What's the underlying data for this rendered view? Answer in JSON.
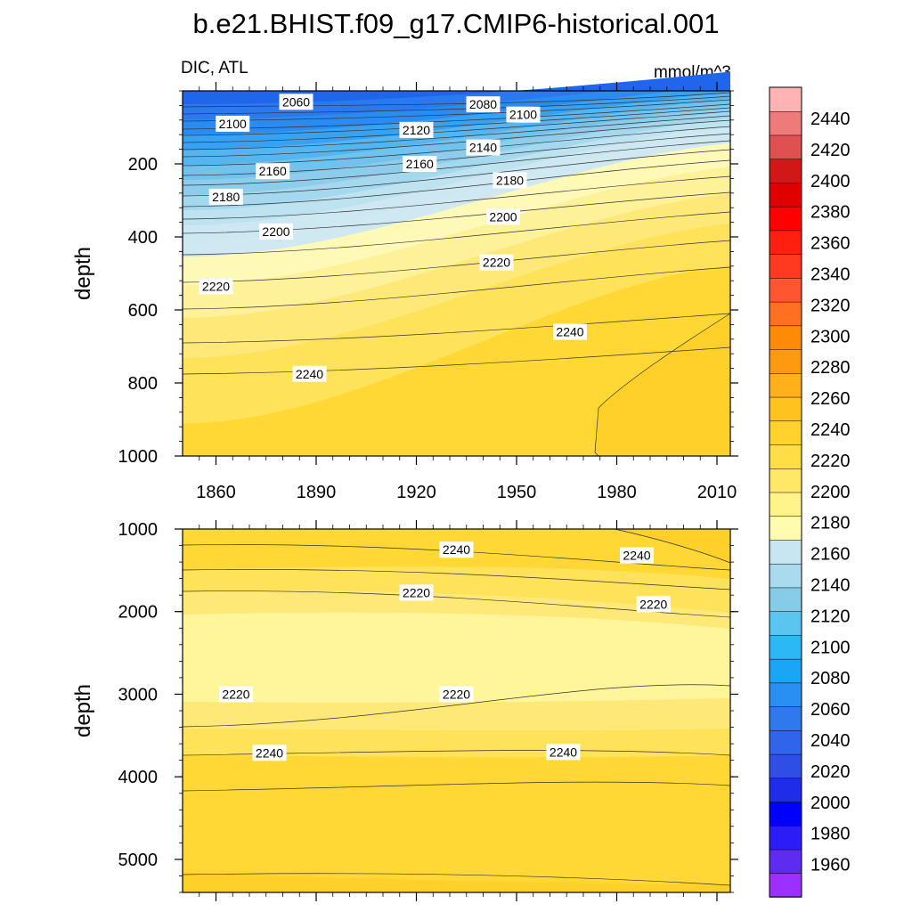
{
  "chart_data": {
    "type": "contour",
    "title": "b.e21.BHIST.f09_g17.CMIP6-historical.001",
    "subtitle_left": "DIC, ATL",
    "subtitle_right": "mmol/m^3",
    "xlabel": "",
    "ylabel": "depth",
    "x_ticks": [
      1860,
      1890,
      1920,
      1950,
      1980,
      2010
    ],
    "x_range": [
      1850,
      2014
    ],
    "colorbar": {
      "levels": [
        1960,
        1980,
        2000,
        2020,
        2040,
        2060,
        2080,
        2100,
        2120,
        2140,
        2160,
        2180,
        2200,
        2220,
        2240,
        2260,
        2280,
        2300,
        2320,
        2340,
        2360,
        2380,
        2400,
        2420,
        2440
      ],
      "labels": [
        "2440",
        "2420",
        "2400",
        "2380",
        "2360",
        "2340",
        "2320",
        "2300",
        "2280",
        "2260",
        "2240",
        "2220",
        "2200",
        "2180",
        "2160",
        "2140",
        "2120",
        "2100",
        "2080",
        "2060",
        "2040",
        "2020",
        "2000",
        "1980",
        "1960"
      ],
      "colors": [
        "#9b30ff",
        "#5d2cf0",
        "#2c1cf5",
        "#0000ff",
        "#1f2ce8",
        "#2e4ee6",
        "#3064ea",
        "#2f79ee",
        "#2a8ff3",
        "#1aa5f7",
        "#2bb8f4",
        "#5ac6f0",
        "#86cbe8",
        "#a9daee",
        "#c8e6f2",
        "#fffbb0",
        "#fff38a",
        "#ffe866",
        "#ffdd44",
        "#ffd22e",
        "#ffc320",
        "#ffb01a",
        "#ff9a10",
        "#ff8a08",
        "#ff7020",
        "#ff5530",
        "#ff3a20",
        "#ff2010",
        "#ff0000",
        "#e00000",
        "#d01818",
        "#e05050",
        "#ef7a7a",
        "#ffb3b3"
      ]
    },
    "panels": [
      {
        "name": "upper-0-1000m",
        "y_range": [
          0,
          1000
        ],
        "y_ticks": [
          200,
          400,
          600,
          800,
          1000
        ],
        "y_tick_labels": [
          "200",
          "400",
          "600",
          "800",
          "1000"
        ],
        "contour_labels": [
          {
            "value": "2060",
            "year": 1884,
            "depth": 30
          },
          {
            "value": "2080",
            "year": 1940,
            "depth": 37
          },
          {
            "value": "2100",
            "year": 1865,
            "depth": 90
          },
          {
            "value": "2100",
            "year": 1952,
            "depth": 65
          },
          {
            "value": "2120",
            "year": 1920,
            "depth": 107
          },
          {
            "value": "2140",
            "year": 1940,
            "depth": 155
          },
          {
            "value": "2160",
            "year": 1877,
            "depth": 220
          },
          {
            "value": "2160",
            "year": 1921,
            "depth": 200
          },
          {
            "value": "2180",
            "year": 1863,
            "depth": 290
          },
          {
            "value": "2180",
            "year": 1948,
            "depth": 245
          },
          {
            "value": "2200",
            "year": 1878,
            "depth": 385
          },
          {
            "value": "2200",
            "year": 1946,
            "depth": 345
          },
          {
            "value": "2220",
            "year": 1860,
            "depth": 535
          },
          {
            "value": "2220",
            "year": 1944,
            "depth": 470
          },
          {
            "value": "2240",
            "year": 1888,
            "depth": 775
          },
          {
            "value": "2240",
            "year": 1966,
            "depth": 660
          }
        ]
      },
      {
        "name": "lower-1000-5400m",
        "y_range": [
          1000,
          5400
        ],
        "y_ticks": [
          1000,
          2000,
          3000,
          4000,
          5000
        ],
        "y_tick_labels": [
          "1000",
          "2000",
          "3000",
          "4000",
          "5000"
        ],
        "contour_labels": [
          {
            "value": "2240",
            "year": 1932,
            "depth": 1250
          },
          {
            "value": "2240",
            "year": 1986,
            "depth": 1320
          },
          {
            "value": "2220",
            "year": 1920,
            "depth": 1770
          },
          {
            "value": "2220",
            "year": 1991,
            "depth": 1910
          },
          {
            "value": "2220",
            "year": 1866,
            "depth": 3000
          },
          {
            "value": "2220",
            "year": 1932,
            "depth": 3000
          },
          {
            "value": "2240",
            "year": 1876,
            "depth": 3710
          },
          {
            "value": "2240",
            "year": 1964,
            "depth": 3700
          }
        ]
      }
    ]
  }
}
